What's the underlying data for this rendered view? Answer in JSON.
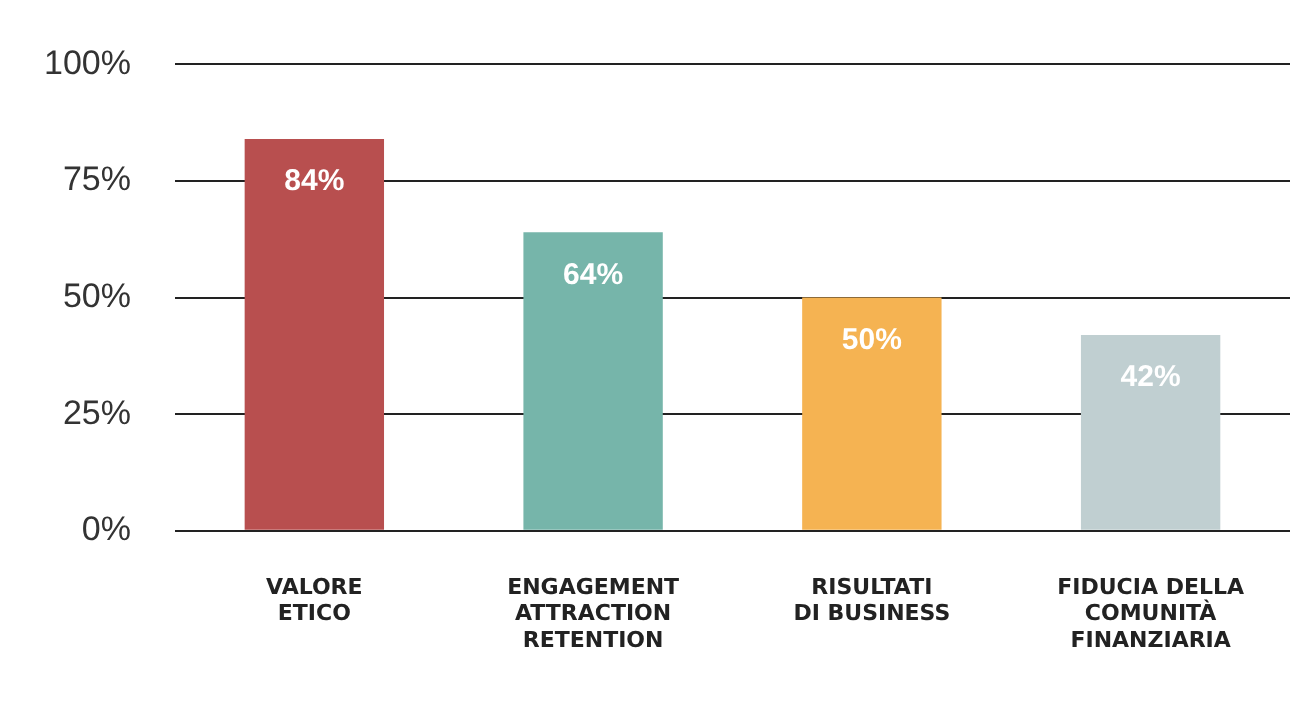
{
  "chart_data": {
    "type": "bar",
    "categories": [
      "VALORE\nETICO",
      "ENGAGEMENT\nATTRACTION\nRETENTION",
      "RISULTATI\nDI BUSINESS",
      "FIDUCIA DELLA\nCOMUNITÀ\nFINANZIARIA"
    ],
    "values": [
      84,
      64,
      50,
      42
    ],
    "colors": [
      "#b84f4f",
      "#76b5aa",
      "#f5b352",
      "#c0cfd1"
    ],
    "value_labels": [
      "84%",
      "64%",
      "50%",
      "42%"
    ],
    "ylim": [
      0,
      100
    ],
    "yticks": [
      {
        "value": 0,
        "label": "0%"
      },
      {
        "value": 25,
        "label": "25%"
      },
      {
        "value": 50,
        "label": "50%"
      },
      {
        "value": 75,
        "label": "75%"
      },
      {
        "value": 100,
        "label": "100%"
      }
    ],
    "grid": "y",
    "legend": false
  }
}
